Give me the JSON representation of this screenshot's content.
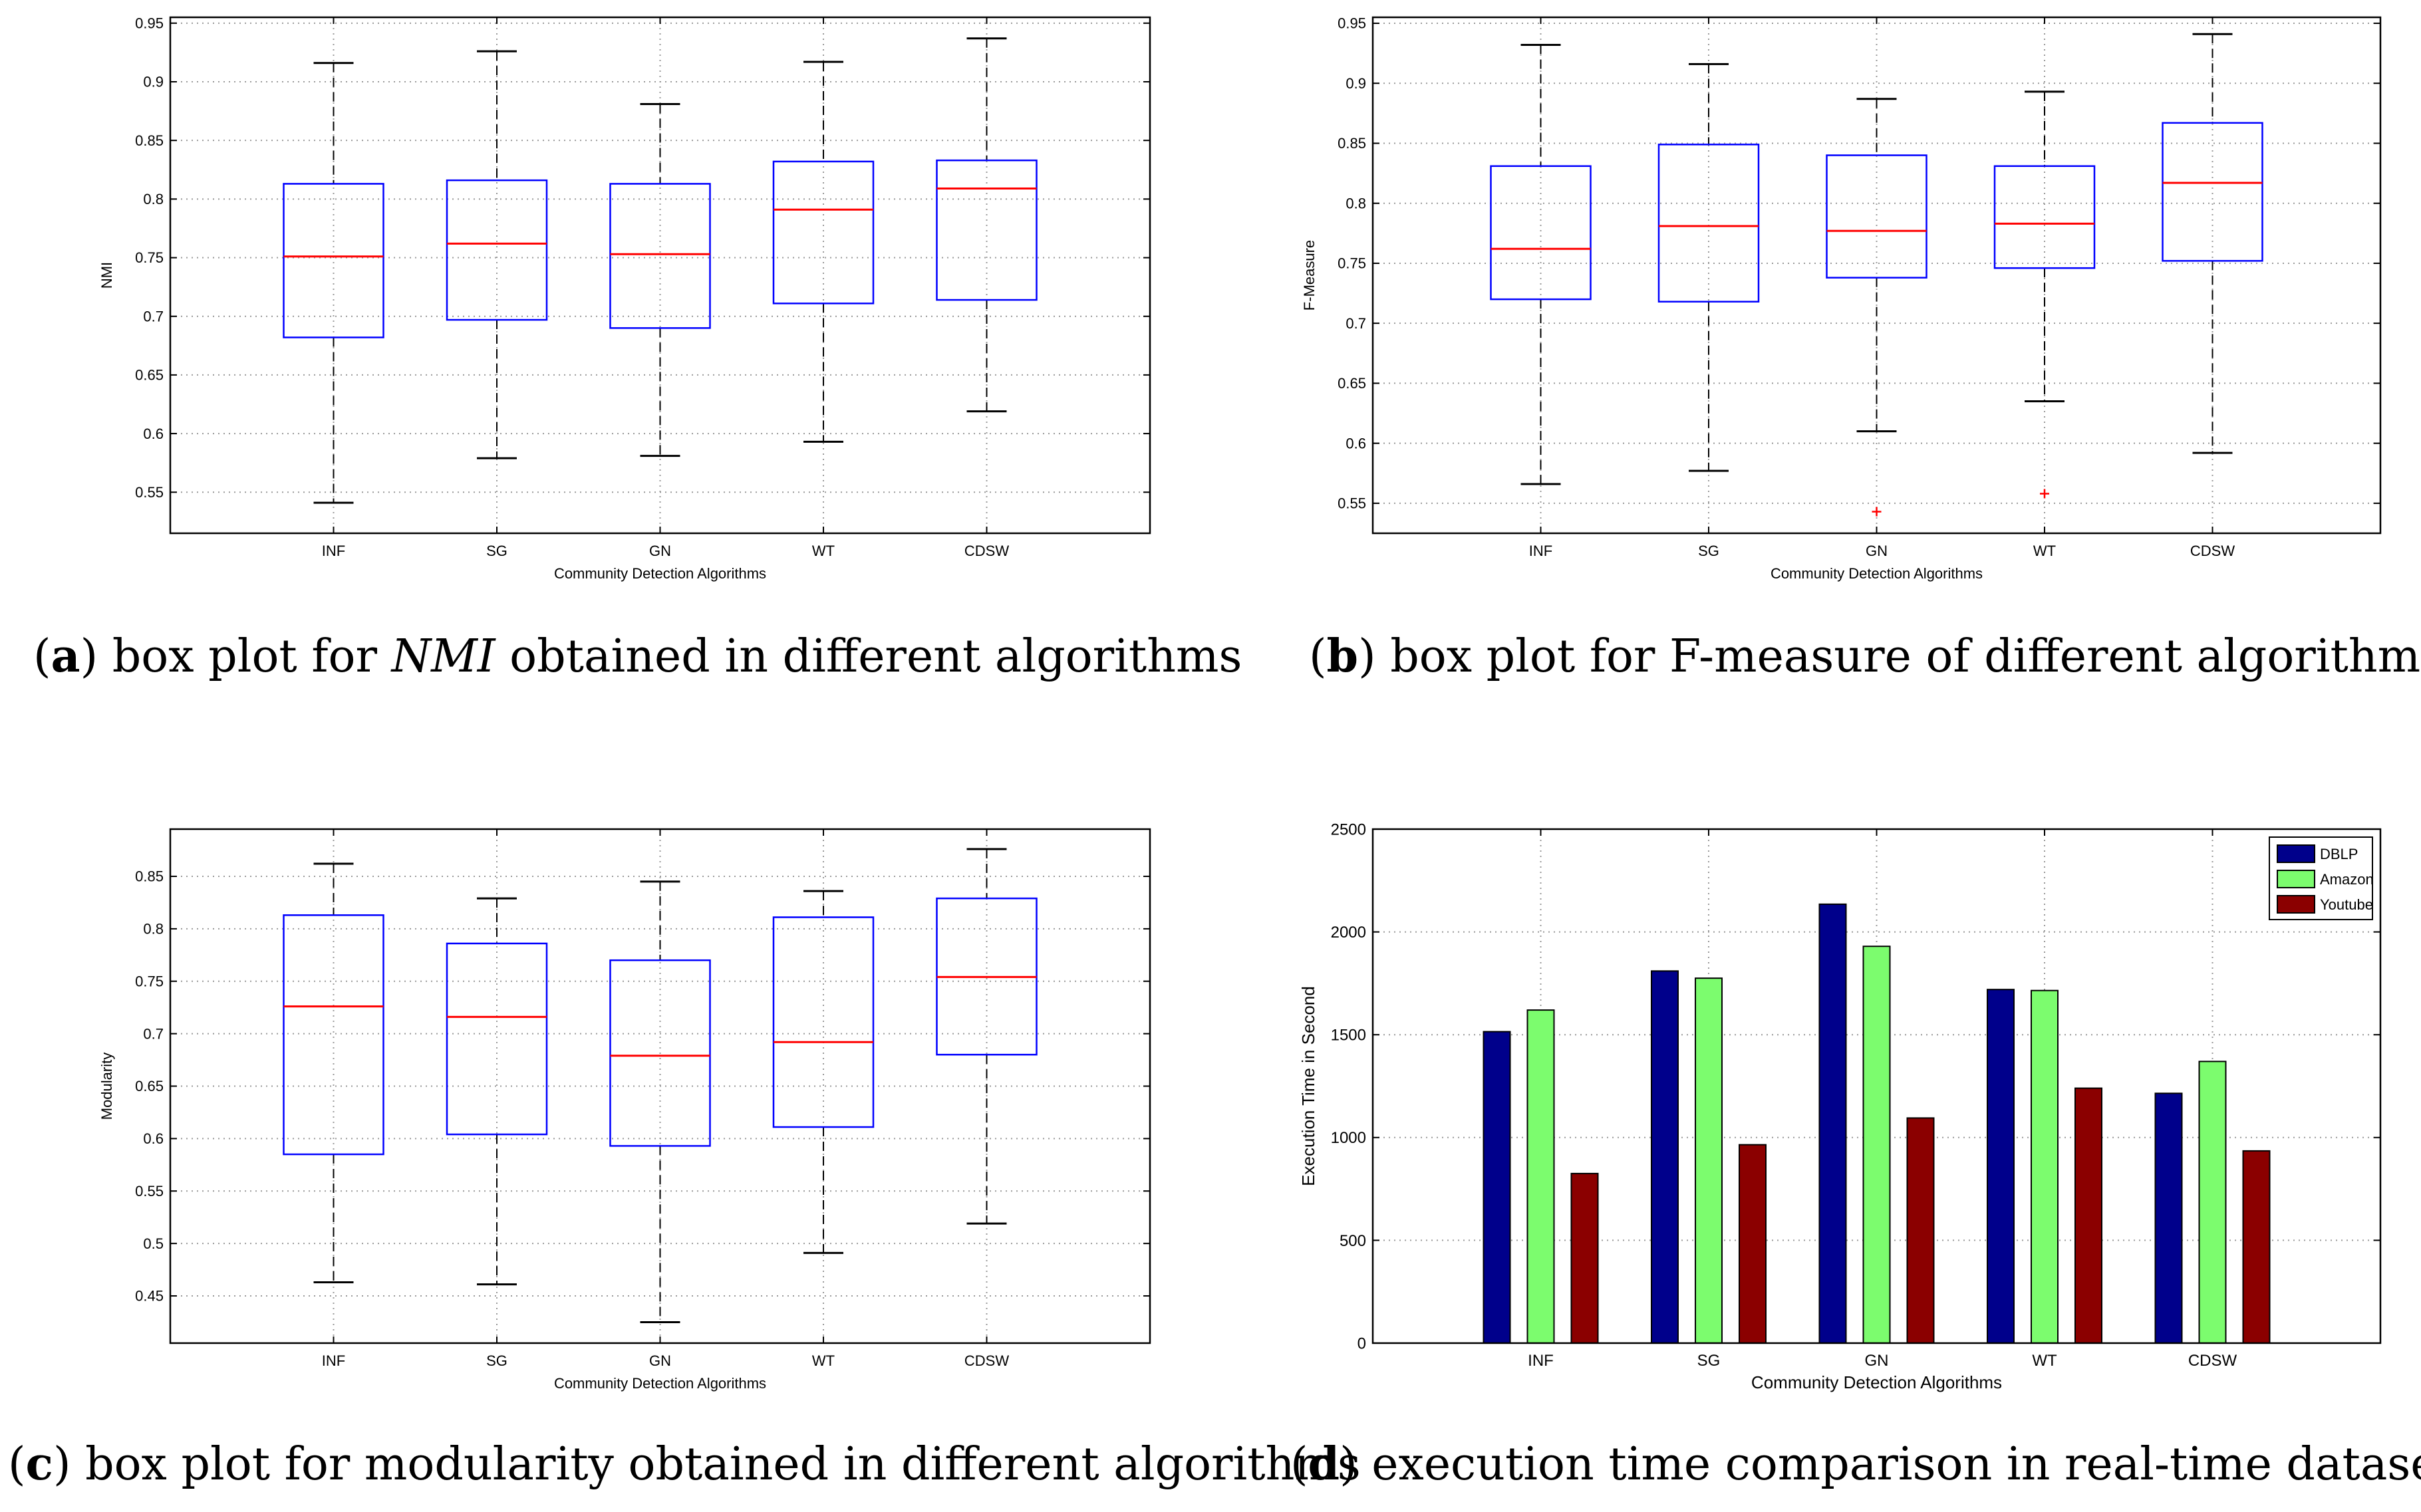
{
  "colors": {
    "box": "#0000ff",
    "median": "#ff0000",
    "whisker": "#000000",
    "outlier": "#ff0000",
    "grid": "#999999",
    "dblp": "#00008b",
    "amazon": "#7cfc6e",
    "youtube": "#8b0000"
  },
  "chart_data": [
    {
      "type": "boxplot",
      "caption": {
        "label": "a",
        "text": " box plot for ",
        "italic": "NMI",
        "rest": " obtained in different algorithms"
      },
      "xlabel": "Community Detection Algorithms",
      "ylabel": "NMI",
      "ylim": [
        0.515,
        0.955
      ],
      "yticks": [
        0.55,
        0.6,
        0.65,
        0.7,
        0.75,
        0.8,
        0.85,
        0.9,
        0.95
      ],
      "ytick_labels": [
        "0.55",
        "0.6",
        "0.65",
        "0.7",
        "0.75",
        "0.8",
        "0.85",
        "0.9",
        "0.95"
      ],
      "categories": [
        "INF",
        "SG",
        "GN",
        "WT",
        "CDSW"
      ],
      "boxes": [
        {
          "min": 0.541,
          "q1": 0.682,
          "median": 0.751,
          "q3": 0.813,
          "max": 0.916,
          "outliers": []
        },
        {
          "min": 0.579,
          "q1": 0.697,
          "median": 0.762,
          "q3": 0.816,
          "max": 0.926,
          "outliers": []
        },
        {
          "min": 0.581,
          "q1": 0.69,
          "median": 0.753,
          "q3": 0.813,
          "max": 0.881,
          "outliers": []
        },
        {
          "min": 0.593,
          "q1": 0.711,
          "median": 0.791,
          "q3": 0.832,
          "max": 0.917,
          "outliers": []
        },
        {
          "min": 0.619,
          "q1": 0.714,
          "median": 0.809,
          "q3": 0.833,
          "max": 0.937,
          "outliers": []
        }
      ]
    },
    {
      "type": "boxplot",
      "caption": {
        "label": "b",
        "text": " box plot for F-measure of different algorithms",
        "italic": "",
        "rest": ""
      },
      "xlabel": "Community Detection Algorithms",
      "ylabel": "F-Measure",
      "ylim": [
        0.525,
        0.955
      ],
      "yticks": [
        0.55,
        0.6,
        0.65,
        0.7,
        0.75,
        0.8,
        0.85,
        0.9,
        0.95
      ],
      "ytick_labels": [
        "0.55",
        "0.6",
        "0.65",
        "0.7",
        "0.75",
        "0.8",
        "0.85",
        "0.9",
        "0.95"
      ],
      "categories": [
        "INF",
        "SG",
        "GN",
        "WT",
        "CDSW"
      ],
      "boxes": [
        {
          "min": 0.566,
          "q1": 0.72,
          "median": 0.762,
          "q3": 0.831,
          "max": 0.932,
          "outliers": []
        },
        {
          "min": 0.577,
          "q1": 0.718,
          "median": 0.781,
          "q3": 0.849,
          "max": 0.916,
          "outliers": []
        },
        {
          "min": 0.61,
          "q1": 0.738,
          "median": 0.777,
          "q3": 0.84,
          "max": 0.887,
          "outliers": [
            0.543
          ]
        },
        {
          "min": 0.635,
          "q1": 0.746,
          "median": 0.783,
          "q3": 0.831,
          "max": 0.893,
          "outliers": [
            0.558
          ]
        },
        {
          "min": 0.592,
          "q1": 0.752,
          "median": 0.817,
          "q3": 0.867,
          "max": 0.941,
          "outliers": []
        }
      ]
    },
    {
      "type": "boxplot",
      "caption": {
        "label": "c",
        "text": " box plot for modularity obtained in different algorithms",
        "italic": "",
        "rest": ""
      },
      "xlabel": "Community Detection Algorithms",
      "ylabel": "Modularity",
      "ylim": [
        0.405,
        0.895
      ],
      "yticks": [
        0.45,
        0.5,
        0.55,
        0.6,
        0.65,
        0.7,
        0.75,
        0.8,
        0.85
      ],
      "ytick_labels": [
        "0.45",
        "0.5",
        "0.55",
        "0.6",
        "0.65",
        "0.7",
        "0.75",
        "0.8",
        "0.85"
      ],
      "categories": [
        "INF",
        "SG",
        "GN",
        "WT",
        "CDSW"
      ],
      "boxes": [
        {
          "min": 0.463,
          "q1": 0.585,
          "median": 0.726,
          "q3": 0.813,
          "max": 0.862,
          "outliers": []
        },
        {
          "min": 0.461,
          "q1": 0.604,
          "median": 0.716,
          "q3": 0.786,
          "max": 0.829,
          "outliers": []
        },
        {
          "min": 0.425,
          "q1": 0.593,
          "median": 0.679,
          "q3": 0.77,
          "max": 0.845,
          "outliers": []
        },
        {
          "min": 0.491,
          "q1": 0.611,
          "median": 0.692,
          "q3": 0.811,
          "max": 0.836,
          "outliers": []
        },
        {
          "min": 0.519,
          "q1": 0.68,
          "median": 0.754,
          "q3": 0.829,
          "max": 0.876,
          "outliers": []
        }
      ]
    },
    {
      "type": "bar",
      "caption": {
        "label": "d",
        "text": " execution time comparison in real-time datasets",
        "italic": "",
        "rest": ""
      },
      "xlabel": "Community Detection Algorithms",
      "ylabel": "Execution Time in Second",
      "ylim": [
        0,
        2500
      ],
      "yticks": [
        0,
        500,
        1000,
        1500,
        2000,
        2500
      ],
      "ytick_labels": [
        "0",
        "500",
        "1000",
        "1500",
        "2000",
        "2500"
      ],
      "categories": [
        "INF",
        "SG",
        "GN",
        "WT",
        "CDSW"
      ],
      "legend_position": "top-right",
      "series": [
        {
          "name": "DBLP",
          "color_key": "dblp",
          "values": [
            1515,
            1810,
            2135,
            1720,
            1215
          ]
        },
        {
          "name": "Amazon",
          "color_key": "amazon",
          "values": [
            1620,
            1775,
            1930,
            1715,
            1370
          ]
        },
        {
          "name": "Youtube",
          "color_key": "youtube",
          "values": [
            825,
            965,
            1095,
            1240,
            935
          ]
        }
      ]
    }
  ]
}
